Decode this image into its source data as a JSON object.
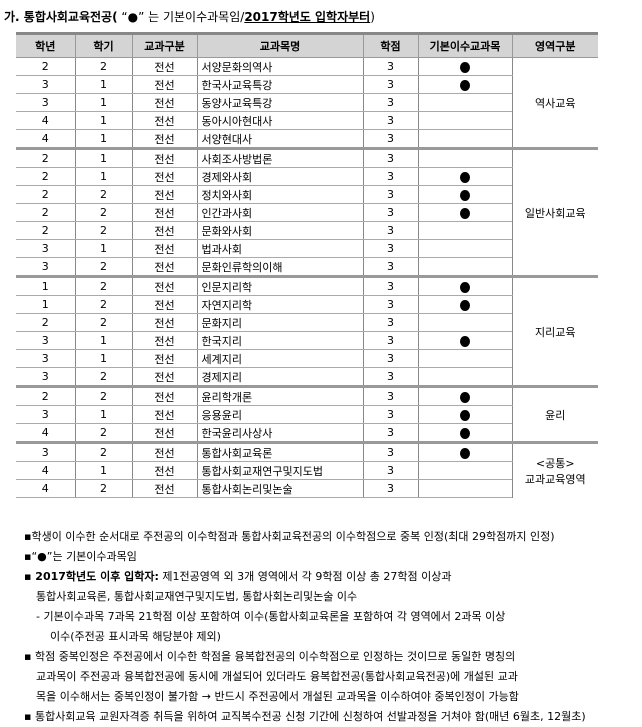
{
  "title": {
    "prefix": "가. 통합사회교육전공(",
    "mark_note": " “●” 는 기본이수과목임/",
    "emph": "2017학년도 입학자부터",
    "suffix": ")"
  },
  "headers": [
    "학년",
    "학기",
    "교과구분",
    "교과목명",
    "학점",
    "기본이수교과목",
    "영역구분"
  ],
  "groups": [
    {
      "area": "역사교육",
      "rows": [
        [
          "2",
          "2",
          "전선",
          "서양문화의역사",
          "3",
          true
        ],
        [
          "3",
          "1",
          "전선",
          "한국사교육특강",
          "3",
          true
        ],
        [
          "3",
          "1",
          "전선",
          "동양사교육특강",
          "3",
          false
        ],
        [
          "4",
          "1",
          "전선",
          "동아시아현대사",
          "3",
          false
        ],
        [
          "4",
          "1",
          "전선",
          "서양현대사",
          "3",
          false
        ]
      ]
    },
    {
      "area": "일반사회교육",
      "rows": [
        [
          "2",
          "1",
          "전선",
          "사회조사방법론",
          "3",
          false
        ],
        [
          "2",
          "1",
          "전선",
          "경제와사회",
          "3",
          true
        ],
        [
          "2",
          "2",
          "전선",
          "정치와사회",
          "3",
          true
        ],
        [
          "2",
          "2",
          "전선",
          "인간과사회",
          "3",
          true
        ],
        [
          "2",
          "2",
          "전선",
          "문화와사회",
          "3",
          false
        ],
        [
          "3",
          "1",
          "전선",
          "법과사회",
          "3",
          false
        ],
        [
          "3",
          "2",
          "전선",
          "문화인류학의이해",
          "3",
          false
        ]
      ]
    },
    {
      "area": "지리교육",
      "rows": [
        [
          "1",
          "2",
          "전선",
          "인문지리학",
          "3",
          true
        ],
        [
          "1",
          "2",
          "전선",
          "자연지리학",
          "3",
          true
        ],
        [
          "2",
          "2",
          "전선",
          "문화지리",
          "3",
          false
        ],
        [
          "3",
          "1",
          "전선",
          "한국지리",
          "3",
          true
        ],
        [
          "3",
          "1",
          "전선",
          "세계지리",
          "3",
          false
        ],
        [
          "3",
          "2",
          "전선",
          "경제지리",
          "3",
          false
        ]
      ]
    },
    {
      "area": "윤리",
      "rows": [
        [
          "2",
          "2",
          "전선",
          "윤리학개론",
          "3",
          true
        ],
        [
          "3",
          "1",
          "전선",
          "응용윤리",
          "3",
          true
        ],
        [
          "4",
          "2",
          "전선",
          "한국윤리사상사",
          "3",
          true
        ]
      ]
    },
    {
      "area": "<공통>\n교과교육영역",
      "rows": [
        [
          "3",
          "2",
          "전선",
          "통합사회교육론",
          "3",
          true
        ],
        [
          "4",
          "1",
          "전선",
          "통합사회교재연구및지도법",
          "3",
          false
        ],
        [
          "4",
          "2",
          "전선",
          "통합사회논리및논술",
          "3",
          false
        ]
      ]
    }
  ],
  "notes": {
    "n1": "▪학생이 이수한 순서대로 주전공의 이수학점과 통합사회교육전공의 이수학점으로 중복 인정(최대 29학점까지 인정)",
    "n2": "▪“●”는 기본이수과목임",
    "n3_bold": "▪ 2017학년도 이후 입학자:",
    "n3": " 제1전공영역 외 3개 영역에서 각 9학점 이상 총 27학점 이상과",
    "n3b": "통합사회교육론, 통합사회교재연구및지도법, 통합사회논리및논술 이수",
    "n4": "- 기본이수과목 7과목 21학점 이상 포함하여 이수(통합사회교육론을 포함하여 각 영역에서 2과목 이상",
    "n4b": "이수(주전공 표시과목 해당분야 제외)",
    "n5": "▪ 학점 중복인정은 주전공에서 이수한 학점을 융복합전공의 이수학점으로 인정하는 것이므로 동일한 명칭의",
    "n5b": "교과목이 주전공과 융복합전공에 동시에 개설되어 있더라도 융복합전공(통합사회교육전공)에 개설된 교과",
    "n5c": "목을 이수해서는 중복인정이 불가함 → 반드시 주전공에서 개설된 교과목을 이수하여야 중복인정이 가능함",
    "n6": "▪ 통합사회교육 교원자격증 취득을 위하여 교직복수전공 신청 기간에 신청하여 선발과정을 거쳐야 함(매년 6월초, 12월초)"
  }
}
